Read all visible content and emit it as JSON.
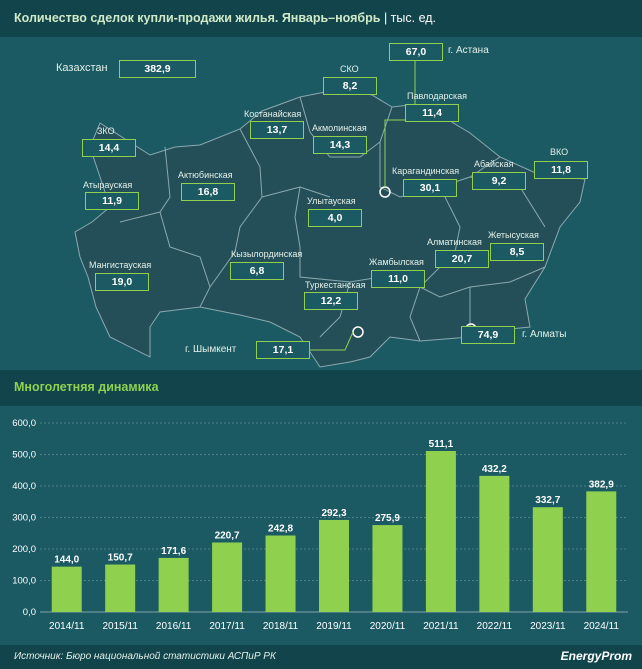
{
  "header": {
    "title": "Количество сделок купли-продажи жилья. Январь–ноябрь",
    "unit": "| тыс. ед."
  },
  "map": {
    "country_label": "Казахстан",
    "country_value": "382,9",
    "regions": [
      {
        "name": "СКО",
        "value": "8,2"
      },
      {
        "name": "Павлодарская",
        "value": "11,4"
      },
      {
        "name": "Костанайская",
        "value": "13,7"
      },
      {
        "name": "Акмолинская",
        "value": "14,3"
      },
      {
        "name": "ЗКО",
        "value": "14,4"
      },
      {
        "name": "Атырауская",
        "value": "11,9"
      },
      {
        "name": "Актюбинская",
        "value": "16,8"
      },
      {
        "name": "Карагандинская",
        "value": "30,1"
      },
      {
        "name": "Абайская",
        "value": "9,2"
      },
      {
        "name": "ВКО",
        "value": "11,8"
      },
      {
        "name": "Улытауская",
        "value": "4,0"
      },
      {
        "name": "Мангистауская",
        "value": "19,0"
      },
      {
        "name": "Кызылординская",
        "value": "6,8"
      },
      {
        "name": "Жамбылская",
        "value": "11,0"
      },
      {
        "name": "Алматинская",
        "value": "20,7"
      },
      {
        "name": "Жетысуская",
        "value": "8,5"
      },
      {
        "name": "Туркестанская",
        "value": "12,2"
      }
    ],
    "cities": [
      {
        "name": "г. Астана",
        "value": "67,0"
      },
      {
        "name": "г. Алматы",
        "value": "74,9"
      },
      {
        "name": "г. Шымкент",
        "value": "17,1"
      }
    ]
  },
  "dynamics": {
    "title": "Многолетняя динамика"
  },
  "chart_data": {
    "type": "bar",
    "title": "Многолетняя динамика",
    "categories": [
      "2014/11",
      "2015/11",
      "2016/11",
      "2017/11",
      "2018/11",
      "2019/11",
      "2020/11",
      "2021/11",
      "2022/11",
      "2023/11",
      "2024/11"
    ],
    "values": [
      144.0,
      150.7,
      171.6,
      220.7,
      242.8,
      292.3,
      275.9,
      511.1,
      432.2,
      332.7,
      382.9
    ],
    "value_labels": [
      "144,0",
      "150,7",
      "171,6",
      "220,7",
      "242,8",
      "292,3",
      "275,9",
      "511,1",
      "432,2",
      "332,7",
      "382,9"
    ],
    "ylim": [
      0,
      600
    ],
    "yticks": [
      0,
      100,
      200,
      300,
      400,
      500,
      600
    ],
    "ytick_labels": [
      "0,0",
      "100,0",
      "200,0",
      "300,0",
      "400,0",
      "500,0",
      "600,0"
    ],
    "grid": true,
    "bar_color": "#8fd14f"
  },
  "footer": {
    "source": "Источник: Бюро национальной статистики АСПиР РК",
    "logo": "EnergyProm"
  }
}
